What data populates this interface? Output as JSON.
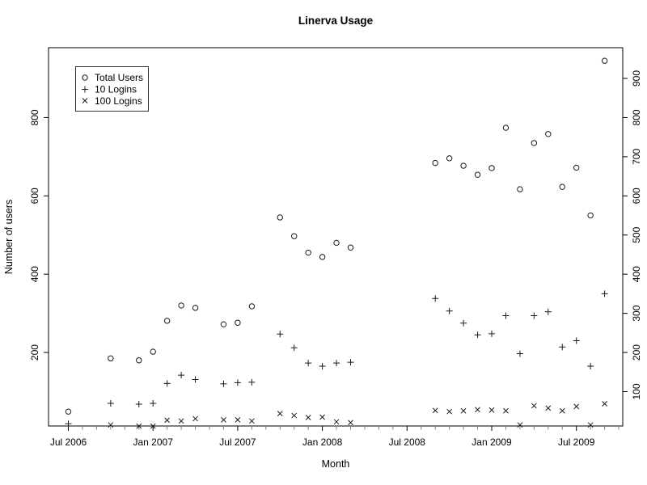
{
  "chart_data": {
    "type": "scatter",
    "title": "Linerva Usage",
    "xlabel": "Month",
    "ylabel": "Number of users",
    "grid": false,
    "legend_position": "top-left",
    "x_tick_labels": [
      "Jul 2006",
      "Jan 2007",
      "Jul 2007",
      "Jan 2008",
      "Jul 2008",
      "Jan 2009",
      "Jul 2009"
    ],
    "x_minor_ticks": "monthly",
    "x_minor_tick_range": [
      "2006-07",
      "2009-10"
    ],
    "y_ticks_left": [
      200,
      400,
      600,
      800
    ],
    "y_ticks_right": [
      100,
      200,
      300,
      400,
      500,
      600,
      700,
      800,
      900
    ],
    "ylim": [
      10,
      975
    ],
    "x": [
      "2006-07",
      "2006-10",
      "2006-12",
      "2007-01",
      "2007-02",
      "2007-03",
      "2007-04",
      "2007-06",
      "2007-07",
      "2007-08",
      "2007-10",
      "2007-11",
      "2007-12",
      "2008-01",
      "2008-02",
      "2008-03",
      "2008-09",
      "2008-10",
      "2008-11",
      "2008-12",
      "2009-01",
      "2009-02",
      "2009-03",
      "2009-04",
      "2009-05",
      "2009-06",
      "2009-07",
      "2009-08",
      "2009-09"
    ],
    "series": [
      {
        "name": "Total Users",
        "symbol": "circle",
        "values": [
          49,
          185,
          180,
          202,
          281,
          320,
          314,
          272,
          276,
          318,
          545,
          497,
          455,
          444,
          480,
          468,
          684,
          696,
          677,
          654,
          671,
          774,
          617,
          735,
          758,
          623,
          672,
          550,
          945
        ]
      },
      {
        "name": "10 Logins",
        "symbol": "plus",
        "values": [
          18,
          70,
          68,
          70,
          121,
          142,
          131,
          120,
          123,
          124,
          247,
          212,
          173,
          165,
          173,
          175,
          338,
          306,
          275,
          245,
          248,
          294,
          197,
          294,
          304,
          214,
          230,
          165,
          350
        ]
      },
      {
        "name": "100 Logins",
        "symbol": "cross",
        "values": [
          null,
          15,
          12,
          12,
          27,
          25,
          31,
          28,
          28,
          25,
          44,
          39,
          34,
          35,
          23,
          21,
          52,
          49,
          51,
          54,
          53,
          51,
          15,
          64,
          58,
          51,
          62,
          15,
          69
        ]
      }
    ]
  }
}
